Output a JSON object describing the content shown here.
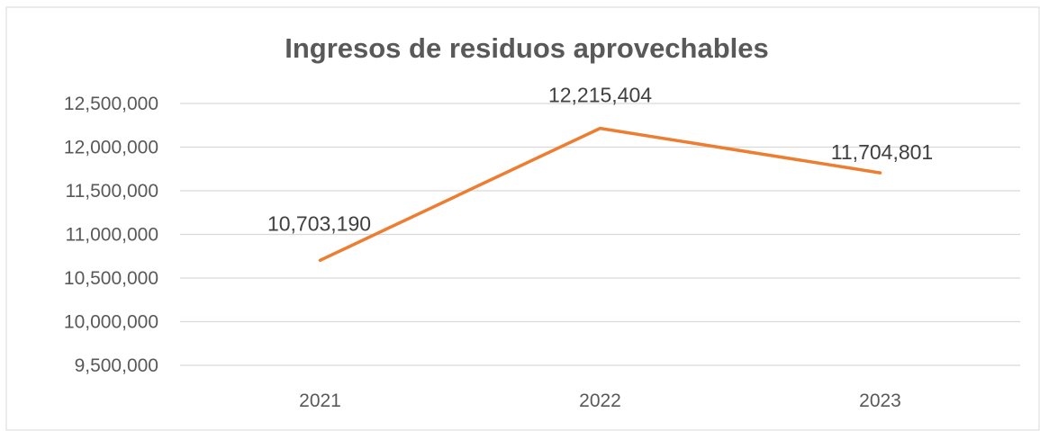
{
  "chart_data": {
    "type": "line",
    "title": "Ingresos de residuos aprovechables",
    "xlabel": "",
    "ylabel": "",
    "categories": [
      "2021",
      "2022",
      "2023"
    ],
    "series": [
      {
        "values": [
          10703190,
          12215404,
          11704801
        ],
        "data_labels": [
          "10,703,190",
          "12,215,404",
          "11,704,801"
        ],
        "color": "#ED7D31"
      }
    ],
    "ylim": [
      9500000,
      12500000
    ],
    "yticks": [
      9500000,
      10000000,
      10500000,
      11000000,
      11500000,
      12000000,
      12500000
    ],
    "ytick_labels": [
      "9,500,000",
      "10,000,000",
      "10,500,000",
      "11,000,000",
      "11,500,000",
      "12,000,000",
      "12,500,000"
    ],
    "grid": true,
    "legend": "none",
    "gridline_color": "#D9D9D9"
  }
}
